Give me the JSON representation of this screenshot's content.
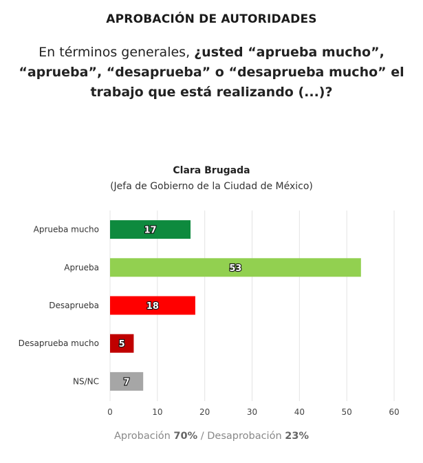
{
  "header": {
    "title": "APROBACIÓN DE AUTORIDADES"
  },
  "question": {
    "prefix": "En términos generales, ",
    "bold": "¿usted “aprueba mucho”, “aprueba”, “desaprueba” o “desaprueba mucho” el trabajo que está realizando (...)?"
  },
  "chart_data": {
    "type": "bar",
    "orientation": "horizontal",
    "title": "Clara Brugada",
    "subtitle": "(Jefa de Gobierno de la Ciudad de México)",
    "categories": [
      "Aprueba mucho",
      "Aprueba",
      "Desaprueba",
      "Desaprueba mucho",
      "NS/NC"
    ],
    "values": [
      17,
      53,
      18,
      5,
      7
    ],
    "colors": [
      "#0e8a3e",
      "#92d050",
      "#ff0000",
      "#c00000",
      "#a6a6a6"
    ],
    "xlim": [
      0,
      60
    ],
    "xticks": [
      0,
      10,
      20,
      30,
      40,
      50,
      60
    ],
    "grid": true,
    "xlabel": "",
    "ylabel": ""
  },
  "footer": {
    "approval_label": "Aprobación",
    "approval_value": "70%",
    "separator": "/",
    "disapproval_label": "Desaprobación",
    "disapproval_value": "23%"
  }
}
